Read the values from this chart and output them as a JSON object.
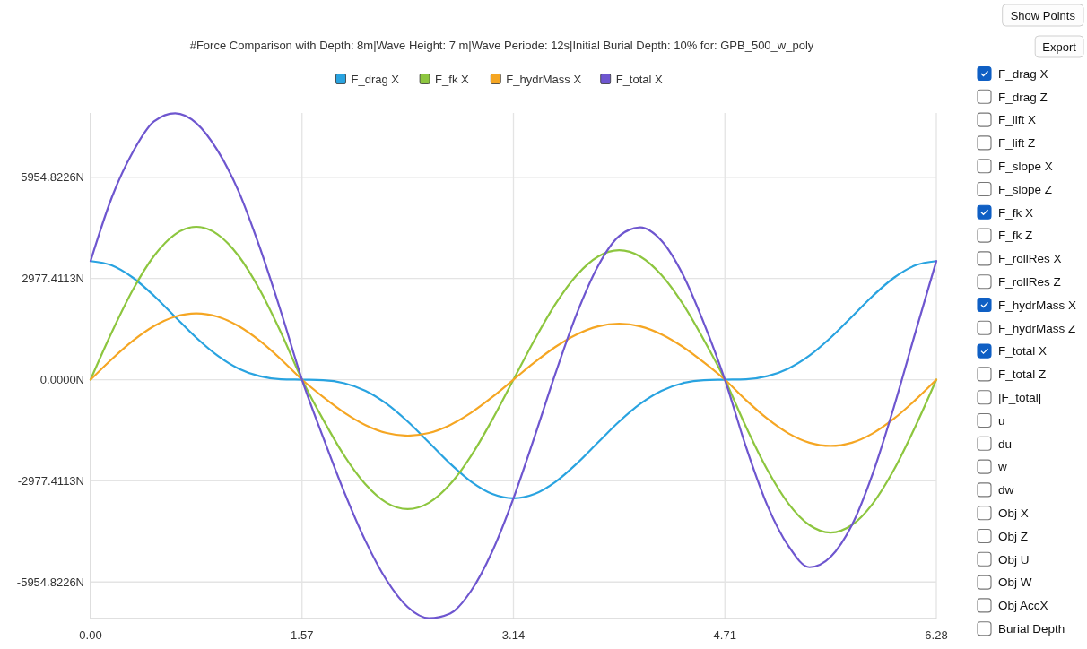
{
  "chart_data": [
    {
      "type": "line",
      "title": "#Force Comparison with Depth: 8m|Wave Height: 7 m|Wave Periode: 12s|Initial Burial Depth: 10% for: GPB_500_w_poly",
      "x": [
        0,
        0.157,
        0.314,
        0.471,
        0.628,
        0.785,
        0.942,
        1.099,
        1.256,
        1.413,
        1.57,
        1.727,
        1.884,
        2.041,
        2.198,
        2.355,
        2.512,
        2.669,
        2.826,
        2.983,
        3.14,
        3.297,
        3.454,
        3.611,
        3.768,
        3.925,
        4.082,
        4.239,
        4.396,
        4.553,
        4.71,
        4.867,
        5.024,
        5.181,
        5.338,
        5.495,
        5.652,
        5.809,
        5.966,
        6.123,
        6.28
      ],
      "series": [
        {
          "name": "F_drag X",
          "color": "#29a3e0",
          "values": [
            3490,
            3363,
            3002,
            2468,
            1848,
            1234,
            709,
            327,
            103,
            13,
            0,
            -13,
            -103,
            -327,
            -709,
            -1234,
            -1848,
            -2468,
            -3002,
            -3363,
            -3490,
            -3363,
            -3002,
            -2468,
            -1848,
            -1234,
            -709,
            -327,
            -103,
            -13,
            0,
            13,
            103,
            327,
            709,
            1234,
            1848,
            2468,
            3002,
            3363,
            3490
          ]
        },
        {
          "name": "F_fk X",
          "color": "#8dc63f",
          "values": [
            0,
            1391,
            2645,
            3641,
            4280,
            4500,
            4280,
            3641,
            2645,
            1391,
            0,
            -1177,
            -2240,
            -3082,
            -3624,
            -3810,
            -3624,
            -3082,
            -2240,
            -1177,
            0,
            1177,
            2240,
            3082,
            3624,
            3810,
            3624,
            3082,
            2240,
            1177,
            0,
            -1391,
            -2645,
            -3641,
            -4280,
            -4500,
            -4280,
            -3641,
            -2645,
            -1391,
            0
          ]
        },
        {
          "name": "F_hydrMass X",
          "color": "#f5a623",
          "values": [
            0,
            603,
            1146,
            1578,
            1855,
            1950,
            1855,
            1578,
            1146,
            603,
            0,
            -510,
            -970,
            -1335,
            -1569,
            -1650,
            -1569,
            -1335,
            -970,
            -510,
            0,
            510,
            970,
            1335,
            1569,
            1650,
            1569,
            1335,
            970,
            510,
            0,
            -603,
            -1146,
            -1578,
            -1855,
            -1950,
            -1855,
            -1578,
            -1146,
            -603,
            0
          ]
        },
        {
          "name": "F_total X",
          "color": "#6e56cf",
          "values": [
            3490,
            5357,
            6700,
            7600,
            7840,
            7550,
            6750,
            5546,
            3894,
            2007,
            0,
            -1700,
            -3313,
            -4744,
            -5902,
            -6694,
            -7020,
            -6885,
            -6212,
            -5050,
            -3490,
            -1676,
            208,
            1949,
            3345,
            4226,
            4484,
            4090,
            3107,
            1674,
            0,
            -1981,
            -3688,
            -4892,
            -5520,
            -5216,
            -4287,
            -2751,
            -789,
            1369,
            3490
          ]
        }
      ],
      "xlim": [
        0,
        6.28
      ],
      "xticks": [
        {
          "value": 0,
          "label": "0.00"
        },
        1.57,
        3.14,
        4.71,
        6.28
      ],
      "ylim": [
        -7030,
        7850
      ],
      "yticks": [
        {
          "value": -5954.8226,
          "label": "-5954.8226N"
        },
        {
          "value": -2977.4113,
          "label": "-2977.4113N"
        },
        {
          "value": 0,
          "label": "0.0000N"
        },
        {
          "value": 2977.4113,
          "label": "2977.4113N"
        },
        {
          "value": 5954.8226,
          "label": "5954.8226N"
        }
      ],
      "grid": true,
      "legend": "top",
      "marker": "none",
      "line_style": "solid"
    },
    {
      "type": "other",
      "annotations": [
        "Show Points",
        "Export",
        "F_drag X",
        "F_drag Z",
        "F_lift X",
        "F_lift Z",
        "F_slope X",
        "F_slope Z",
        "F_fk X",
        "F_fk Z",
        "F_rollRes X",
        "F_rollRes Z",
        "F_hydrMass X",
        "F_hydrMass Z",
        "F_total X",
        "F_total Z",
        "|F_total|",
        "u",
        "du",
        "w",
        "dw",
        "Obj X",
        "Obj Z",
        "Obj U",
        "Obj W",
        "Obj AccX",
        "Burial Depth"
      ]
    }
  ]
}
